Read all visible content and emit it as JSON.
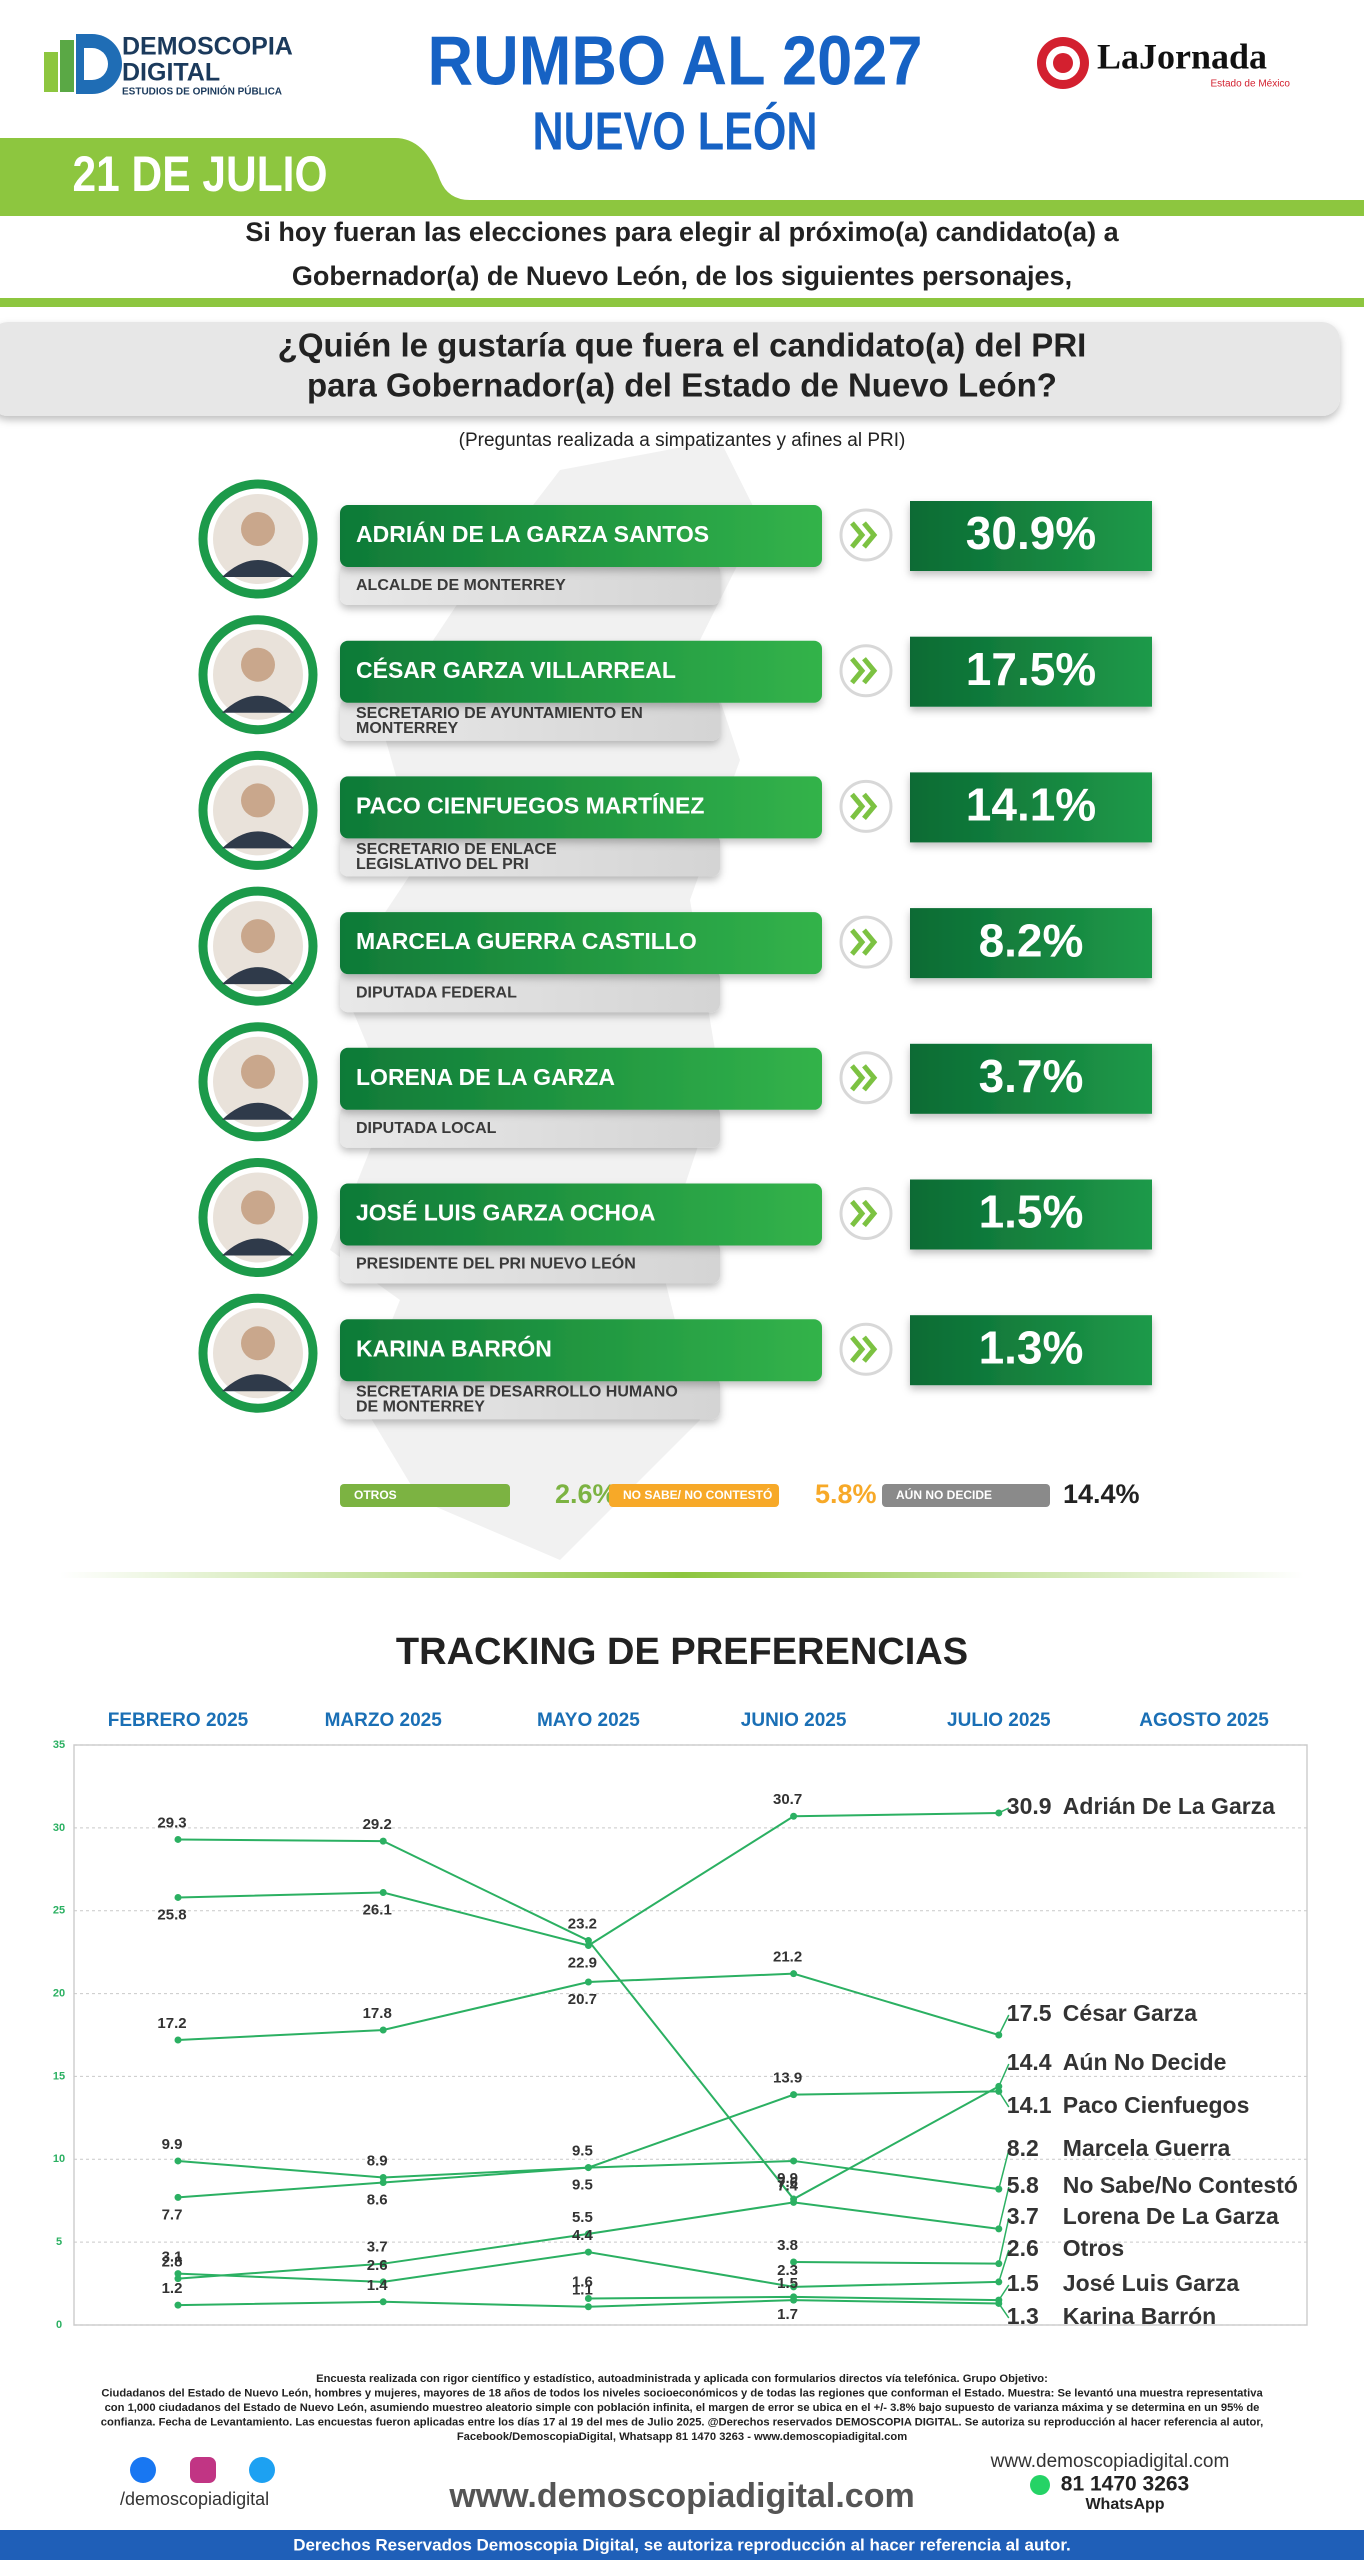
{
  "header": {
    "logo_name_1": "DEMOSCOPIA",
    "logo_name_2": "DIGITAL",
    "logo_tagline": "ESTUDIOS DE OPINIÓN PÚBLICA",
    "title": "RUMBO AL 2027",
    "subtitle": "NUEVO LEÓN",
    "partner": "LaJornada",
    "partner_tagline": "Estado de México",
    "date": "21 DE JULIO"
  },
  "intro_lines": [
    "Si hoy fueran las elecciones para elegir al próximo(a) candidato(a) a",
    "Gobernador(a) de Nuevo León, de los siguientes personajes,"
  ],
  "question_lines": [
    "¿Quién le gustaría que fuera el candidato(a) del PRI",
    "para Gobernador(a) del Estado de Nuevo León?"
  ],
  "note": "(Preguntas realizada a simpatizantes y afines al PRI)",
  "chart_data": [
    {
      "type": "ranking",
      "candidates": [
        {
          "name": "ADRIÁN DE LA GARZA SANTOS",
          "role": "ALCALDE DE MONTERREY",
          "value": 30.9,
          "value_label": "30.9%"
        },
        {
          "name": "CÉSAR GARZA VILLARREAL",
          "role": "SECRETARIO DE AYUNTAMIENTO EN MONTERREY",
          "value": 17.5,
          "value_label": "17.5%"
        },
        {
          "name": "PACO CIENFUEGOS MARTÍNEZ",
          "role": "SECRETARIO DE ENLACE LEGISLATIVO DEL PRI",
          "value": 14.1,
          "value_label": "14.1%"
        },
        {
          "name": "MARCELA GUERRA CASTILLO",
          "role": "DIPUTADA FEDERAL",
          "value": 8.2,
          "value_label": "8.2%"
        },
        {
          "name": "LORENA DE LA GARZA",
          "role": "DIPUTADA LOCAL",
          "value": 3.7,
          "value_label": "3.7%"
        },
        {
          "name": "JOSÉ LUIS GARZA OCHOA",
          "role": "PRESIDENTE DEL PRI NUEVO LEÓN",
          "value": 1.5,
          "value_label": "1.5%"
        },
        {
          "name": "KARINA BARRÓN",
          "role": "SECRETARIA DE DESARROLLO HUMANO DE MONTERREY",
          "value": 1.3,
          "value_label": "1.3%"
        }
      ],
      "others": [
        {
          "name": "OTROS",
          "value": 2.6,
          "value_label": "2.6%",
          "color": "#7cb342"
        },
        {
          "name": "NO SABE/ NO CONTESTÓ",
          "value": 5.8,
          "value_label": "5.8%",
          "color": "#f7a928"
        },
        {
          "name": "AÚN NO DECIDE",
          "value": 14.4,
          "value_label": "14.4%",
          "color": "#8a8a8a"
        }
      ]
    },
    {
      "type": "line",
      "title": "TRACKING DE PREFERENCIAS",
      "categories": [
        "FEBRERO 2025",
        "MARZO 2025",
        "MAYO 2025",
        "JUNIO 2025",
        "JULIO 2025",
        "AGOSTO 2025"
      ],
      "ylim": [
        0,
        35
      ],
      "yticks": [
        0,
        5,
        10,
        15,
        20,
        25,
        30,
        35
      ],
      "grid": true,
      "series": [
        {
          "name": "Adrián De La Garza",
          "color": "#2bb062",
          "values": [
            25.8,
            26.1,
            22.9,
            30.7,
            30.9,
            null
          ]
        },
        {
          "name": "César Garza",
          "color": "#2bb062",
          "values": [
            17.2,
            17.8,
            20.7,
            21.2,
            17.5,
            null
          ]
        },
        {
          "name": "Aún No Decide",
          "color": "#2bb062",
          "values": [
            29.3,
            29.2,
            23.2,
            7.6,
            14.4,
            null
          ]
        },
        {
          "name": "Paco Cienfuegos",
          "color": "#2bb062",
          "values": [
            9.9,
            8.9,
            9.5,
            13.9,
            14.1,
            null
          ]
        },
        {
          "name": "Marcela Guerra",
          "color": "#2bb062",
          "values": [
            7.7,
            8.6,
            9.5,
            9.9,
            8.2,
            null
          ]
        },
        {
          "name": "No Sabe/No Contestó",
          "color": "#2bb062",
          "values": [
            2.8,
            3.7,
            5.5,
            7.4,
            5.8,
            null
          ]
        },
        {
          "name": "Lorena De La Garza",
          "color": "#2bb062",
          "values": [
            null,
            null,
            null,
            3.8,
            3.7,
            null
          ]
        },
        {
          "name": "Otros",
          "color": "#2bb062",
          "values": [
            3.1,
            2.6,
            4.4,
            2.3,
            2.6,
            null
          ]
        },
        {
          "name": "José Luis Garza",
          "color": "#2bb062",
          "values": [
            null,
            null,
            1.6,
            1.7,
            1.5,
            null
          ]
        },
        {
          "name": "Karina Barrón",
          "color": "#2bb062",
          "values": [
            1.2,
            1.4,
            1.1,
            1.5,
            1.3,
            null
          ]
        }
      ]
    }
  ],
  "footer": {
    "methodology_lines": [
      "Encuesta realizada con rigor científico y estadístico, autoadministrada y aplicada con formularios directos vía telefónica. Grupo Objetivo:",
      "Ciudadanos del Estado de Nuevo León, hombres y mujeres, mayores de 18 años de todos los niveles socioeconómicos y de todas las regiones que conforman el Estado. Muestra: Se levantó una muestra representativa",
      "con 1,000 ciudadanos del Estado de Nuevo León, asumiendo muestreo aleatorio simple con población infinita, el margen de error se ubica en el +/- 3.8% bajo supuesto de varianza máxima y se determina en un 95% de",
      "confianza. Fecha de Levantamiento. Las encuestas fueron aplicadas entre los días 17 al 19 del mes de Julio 2025. @Derechos reservados DEMOSCOPIA DIGITAL. Se autoriza su reproducción al hacer referencia al autor,",
      "Facebook/DemoscopiaDigital, Whatsapp 81 1470 3263 - www.demoscopiadigital.com"
    ],
    "social_handle": "/demoscopiadigital",
    "website": "www.demoscopiadigital.com",
    "website_small": "www.demoscopiadigital.com",
    "phone": "81 1470 3263",
    "phone_label": "WhatsApp",
    "copyright": "Derechos Reservados Demoscopia Digital, se autoriza reproducción al hacer referencia al autor."
  }
}
